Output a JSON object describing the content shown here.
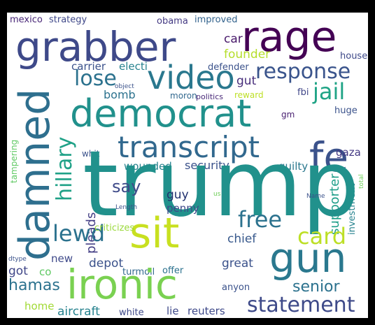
{
  "words": {
    "trump": "trump",
    "sit": "sit",
    "ironic": "ironic",
    "gun": "gun",
    "democrat": "democrat",
    "damned": "damned",
    "grabber": "grabber",
    "rage": "rage",
    "fe": "fe",
    "video": "video",
    "transcript": "transcript",
    "statement": "statement",
    "response": "response",
    "jail": "jail",
    "card": "card",
    "free": "free",
    "lewd": "lewd",
    "hillary": "hillary",
    "lose": "lose",
    "hamas": "hamas",
    "senior": "senior",
    "supporter": "supporter",
    "say": "say",
    "car": "car",
    "founder": "founder",
    "carrier": "carrier",
    "electi": "electi",
    "security": "security",
    "wounded": "wounded",
    "guilty": "guilty",
    "guy": "guy",
    "penny": "penny",
    "pleads": "pleads",
    "chief": "chief",
    "great": "great",
    "depot": "depot",
    "new": "new",
    "got": "got",
    "co": "co",
    "home": "home",
    "aircraft": "aircraft",
    "white": "white",
    "lie": "lie",
    "reuters": "reuters",
    "anyon": "anyon",
    "turmoil": "turmoil",
    "offer": "offer",
    "criticizes": "criticizes",
    "bomb": "bomb",
    "moron": "moron",
    "politics": "politics",
    "reward": "reward",
    "gut": "gut",
    "defender": "defender",
    "fbi": "fbi",
    "gm": "gm",
    "huge": "huge",
    "gaza": "gaza",
    "house": "house",
    "mexico": "mexico",
    "strategy": "strategy",
    "obama": "obama",
    "improved": "improved",
    "object": "object",
    "whit": "whit",
    "tampering": "tampering",
    "total": "total",
    "investment": "investment",
    "name": "Name",
    "length": "Length",
    "dtype": "dtype",
    "us": "us"
  }
}
